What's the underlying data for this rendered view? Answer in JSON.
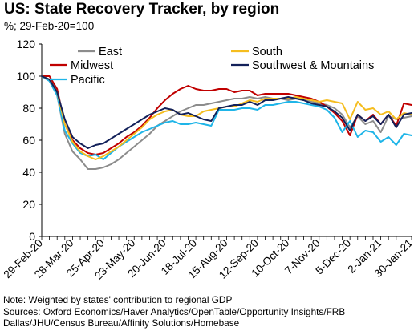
{
  "title": "US: State Recovery Tracker, by region",
  "subtitle": "%; 29-Feb-20=100",
  "footnote": {
    "note": "Note: Weighted by states' contribution to regional GDP",
    "sources_line1": "Sources: Oxford Economics/Haver Analytics/OpenTable/Opportunity Insights/FRB",
    "sources_line2": "Dallas/JHU/Census Bureau/Affinity Solutions/Homebase"
  },
  "chart_data": {
    "type": "line",
    "title": "US: State Recovery Tracker, by region",
    "ylim": [
      0,
      120
    ],
    "yticks": [
      0,
      20,
      40,
      60,
      80,
      100,
      120
    ],
    "grid": false,
    "legend_position": "top",
    "x_tick_labels": [
      "29-Feb-20",
      "28-Mar-20",
      "25-Apr-20",
      "23-May-20",
      "20-Jun-20",
      "18-Jul-20",
      "15-Aug-20",
      "12-Sep-20",
      "10-Oct-20",
      "7-Nov-20",
      "5-Dec-20",
      "2-Jan-21",
      "30-Jan-21"
    ],
    "x": [
      "29-Feb-20",
      "7-Mar-20",
      "14-Mar-20",
      "21-Mar-20",
      "28-Mar-20",
      "4-Apr-20",
      "11-Apr-20",
      "18-Apr-20",
      "25-Apr-20",
      "2-May-20",
      "9-May-20",
      "16-May-20",
      "23-May-20",
      "30-May-20",
      "6-Jun-20",
      "13-Jun-20",
      "20-Jun-20",
      "27-Jun-20",
      "4-Jul-20",
      "11-Jul-20",
      "18-Jul-20",
      "25-Jul-20",
      "1-Aug-20",
      "8-Aug-20",
      "15-Aug-20",
      "22-Aug-20",
      "29-Aug-20",
      "5-Sep-20",
      "12-Sep-20",
      "19-Sep-20",
      "26-Sep-20",
      "3-Oct-20",
      "10-Oct-20",
      "17-Oct-20",
      "24-Oct-20",
      "31-Oct-20",
      "7-Nov-20",
      "14-Nov-20",
      "21-Nov-20",
      "28-Nov-20",
      "5-Dec-20",
      "12-Dec-20",
      "19-Dec-20",
      "26-Dec-20",
      "2-Jan-21",
      "9-Jan-21",
      "16-Jan-21",
      "23-Jan-21",
      "30-Jan-21"
    ],
    "series": [
      {
        "name": "East",
        "color": "#8c8c8c",
        "values": [
          100,
          97,
          88,
          64,
          53,
          48,
          42,
          42,
          43,
          45,
          48,
          52,
          56,
          60,
          64,
          69,
          72,
          75,
          78,
          80,
          82,
          82,
          83,
          84,
          85,
          86,
          86,
          87,
          86,
          87,
          86,
          86,
          85,
          86,
          85,
          84,
          83,
          82,
          80,
          76,
          68,
          75,
          70,
          72,
          65,
          75,
          73,
          74,
          75
        ]
      },
      {
        "name": "Midwest",
        "color": "#c00000",
        "values": [
          100,
          100,
          92,
          70,
          60,
          55,
          52,
          51,
          52,
          55,
          58,
          62,
          65,
          69,
          74,
          80,
          85,
          89,
          92,
          94,
          92,
          91,
          91,
          92,
          92,
          90,
          91,
          91,
          88,
          89,
          89,
          89,
          89,
          88,
          87,
          86,
          84,
          81,
          77,
          72,
          63,
          76,
          72,
          76,
          70,
          76,
          69,
          83,
          82
        ]
      },
      {
        "name": "Pacific",
        "color": "#1fb5e8",
        "values": [
          100,
          97,
          88,
          66,
          58,
          52,
          50,
          51,
          48,
          52,
          56,
          59,
          62,
          65,
          67,
          69,
          71,
          72,
          70,
          70,
          71,
          70,
          69,
          79,
          79,
          79,
          80,
          80,
          79,
          82,
          82,
          83,
          84,
          84,
          83,
          82,
          81,
          79,
          74,
          65,
          72,
          62,
          66,
          65,
          59,
          62,
          57,
          64,
          63
        ]
      },
      {
        "name": "South",
        "color": "#f5bd1f",
        "values": [
          100,
          98,
          90,
          70,
          59,
          53,
          50,
          48,
          50,
          53,
          56,
          60,
          64,
          68,
          73,
          76,
          78,
          79,
          76,
          75,
          75,
          78,
          79,
          80,
          81,
          81,
          83,
          85,
          84,
          86,
          86,
          86,
          86,
          87,
          86,
          85,
          84,
          85,
          84,
          83,
          73,
          84,
          79,
          80,
          76,
          78,
          73,
          77,
          76
        ]
      },
      {
        "name": "Southwest & Mountains",
        "color": "#13215a",
        "values": [
          100,
          98,
          90,
          73,
          62,
          58,
          55,
          57,
          58,
          61,
          64,
          67,
          70,
          73,
          76,
          78,
          80,
          79,
          76,
          77,
          75,
          73,
          72,
          80,
          81,
          82,
          82,
          84,
          82,
          85,
          85,
          86,
          87,
          86,
          85,
          83,
          82,
          81,
          78,
          74,
          66,
          76,
          72,
          75,
          70,
          76,
          68,
          76,
          77
        ]
      }
    ]
  }
}
